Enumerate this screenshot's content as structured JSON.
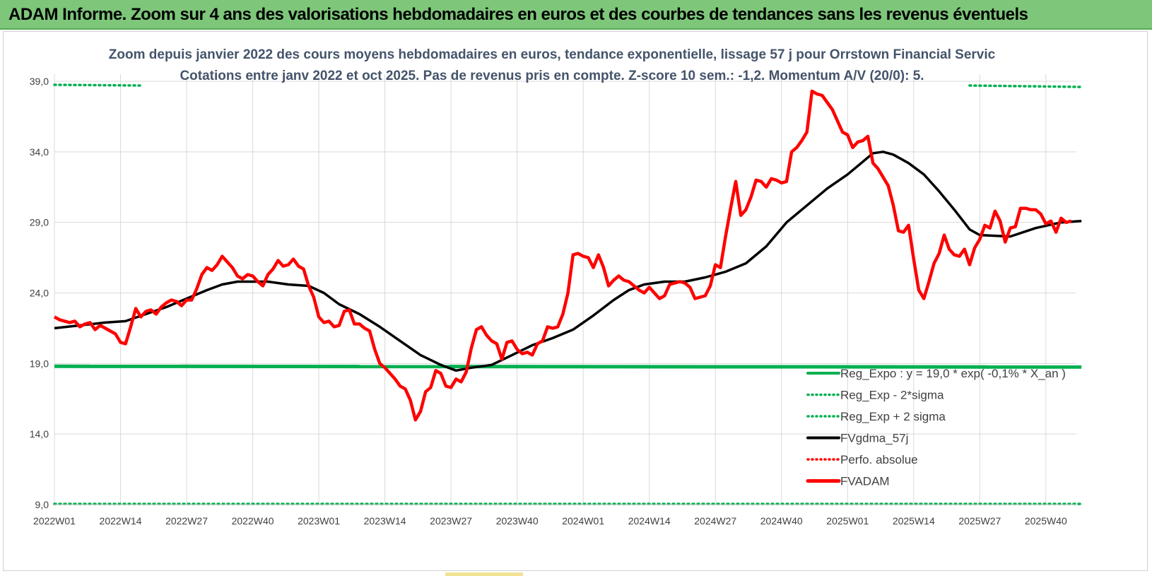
{
  "header": {
    "title": "ADAM Informe. Zoom sur 4 ans des valorisations hebdomadaires en euros et des courbes de tendances sans les revenus éventuels"
  },
  "colors": {
    "banner": "#7dc67a",
    "price": "#ff0000",
    "trend": "#000000",
    "regression": "#00b050",
    "grid": "#d9d9d9"
  },
  "chart_data": {
    "type": "line",
    "title_line1": "Zoom depuis janvier 2022 des cours moyens hebdomadaires en euros, tendance exponentielle, lissage 57 j pour Orrstown Financial Servic",
    "title_line2": "Cotations entre janv 2022 et oct 2025. Pas de revenus pris en compte. Z-score 10 sem.: -1,2. Momentum A/V (20/0): 5.",
    "ylim": [
      9,
      39
    ],
    "yticks": [
      9,
      14,
      19,
      24,
      29,
      34,
      39
    ],
    "ytick_labels": [
      "9,0",
      "14,0",
      "19,0",
      "24,0",
      "29,0",
      "34,0",
      "39,0"
    ],
    "xtick_labels": [
      "2022W01",
      "2022W14",
      "2022W27",
      "2022W40",
      "2023W01",
      "2023W14",
      "2023W27",
      "2023W40",
      "2024W01",
      "2024W14",
      "2024W27",
      "2024W40",
      "2025W01",
      "2025W14",
      "2025W27",
      "2025W40"
    ],
    "weeks_per_tick": 13,
    "n_weeks": 202,
    "legend": {
      "placement": "bottom-right",
      "entries": [
        {
          "label": "Reg_Expo : y = 19,0 * exp( -0,1% *  X_an )",
          "style": "solid",
          "color": "#00b050"
        },
        {
          "label": "Reg_Exp - 2*sigma",
          "style": "dotted",
          "color": "#00b050"
        },
        {
          "label": "Reg_Exp + 2 sigma",
          "style": "dotted",
          "color": "#00b050"
        },
        {
          "label": "FVgdma_57j",
          "style": "solid",
          "color": "#000000"
        },
        {
          "label": "Perfo. absolue",
          "style": "dotted",
          "color": "#ff0000"
        },
        {
          "label": "FVADAM",
          "style": "solid-thick",
          "color": "#ff0000"
        }
      ]
    },
    "series": [
      {
        "name": "Reg_Expo",
        "style": "solid",
        "points": [
          [
            0,
            18.8
          ],
          [
            202,
            18.75
          ]
        ]
      },
      {
        "name": "Reg_Exp - 2*sigma",
        "style": "dotted",
        "points": [
          [
            0,
            9.05
          ],
          [
            202,
            9.05
          ]
        ]
      },
      {
        "name": "Reg_Exp + 2 sigma",
        "style": "dotted",
        "segments": [
          [
            [
              0,
              38.75
            ],
            [
              17,
              38.7
            ]
          ],
          [
            [
              180,
              38.7
            ],
            [
              202,
              38.6
            ]
          ]
        ]
      },
      {
        "name": "FVgdma_57j",
        "points": [
          [
            0,
            21.5
          ],
          [
            5,
            21.7
          ],
          [
            10,
            21.9
          ],
          [
            14,
            22.0
          ],
          [
            18,
            22.5
          ],
          [
            22,
            23.0
          ],
          [
            26,
            23.6
          ],
          [
            30,
            24.2
          ],
          [
            33,
            24.6
          ],
          [
            36,
            24.8
          ],
          [
            42,
            24.8
          ],
          [
            46,
            24.6
          ],
          [
            50,
            24.5
          ],
          [
            53,
            24.0
          ],
          [
            56,
            23.2
          ],
          [
            60,
            22.5
          ],
          [
            64,
            21.6
          ],
          [
            68,
            20.6
          ],
          [
            72,
            19.6
          ],
          [
            76,
            18.9
          ],
          [
            79,
            18.5
          ],
          [
            82,
            18.7
          ],
          [
            86,
            18.9
          ],
          [
            90,
            19.6
          ],
          [
            94,
            20.3
          ],
          [
            98,
            20.8
          ],
          [
            102,
            21.4
          ],
          [
            106,
            22.4
          ],
          [
            110,
            23.5
          ],
          [
            113,
            24.2
          ],
          [
            116,
            24.6
          ],
          [
            120,
            24.8
          ],
          [
            124,
            24.8
          ],
          [
            128,
            25.1
          ],
          [
            132,
            25.5
          ],
          [
            136,
            26.1
          ],
          [
            140,
            27.3
          ],
          [
            144,
            29.0
          ],
          [
            148,
            30.2
          ],
          [
            152,
            31.4
          ],
          [
            156,
            32.4
          ],
          [
            159,
            33.3
          ],
          [
            161,
            33.9
          ],
          [
            163,
            34.0
          ],
          [
            165,
            33.8
          ],
          [
            168,
            33.2
          ],
          [
            171,
            32.4
          ],
          [
            174,
            31.2
          ],
          [
            177,
            29.9
          ],
          [
            180,
            28.5
          ],
          [
            182,
            28.1
          ],
          [
            188,
            28.0
          ],
          [
            193,
            28.6
          ],
          [
            198,
            29.0
          ],
          [
            202,
            29.1
          ]
        ]
      },
      {
        "name": "FVADAM",
        "points": [
          [
            0,
            22.3
          ],
          [
            1,
            22.1
          ],
          [
            2,
            22.0
          ],
          [
            3,
            21.9
          ],
          [
            4,
            22.0
          ],
          [
            5,
            21.6
          ],
          [
            6,
            21.8
          ],
          [
            7,
            21.9
          ],
          [
            8,
            21.4
          ],
          [
            9,
            21.7
          ],
          [
            10,
            21.5
          ],
          [
            11,
            21.3
          ],
          [
            12,
            21.1
          ],
          [
            13,
            20.5
          ],
          [
            14,
            20.4
          ],
          [
            15,
            21.6
          ],
          [
            16,
            22.9
          ],
          [
            17,
            22.3
          ],
          [
            18,
            22.7
          ],
          [
            19,
            22.8
          ],
          [
            20,
            22.5
          ],
          [
            21,
            23.0
          ],
          [
            22,
            23.3
          ],
          [
            23,
            23.5
          ],
          [
            24,
            23.4
          ],
          [
            25,
            23.1
          ],
          [
            26,
            23.5
          ],
          [
            27,
            23.5
          ],
          [
            28,
            24.3
          ],
          [
            29,
            25.3
          ],
          [
            30,
            25.8
          ],
          [
            31,
            25.6
          ],
          [
            32,
            26.0
          ],
          [
            33,
            26.6
          ],
          [
            34,
            26.2
          ],
          [
            35,
            25.8
          ],
          [
            36,
            25.2
          ],
          [
            37,
            25.0
          ],
          [
            38,
            25.3
          ],
          [
            39,
            25.2
          ],
          [
            40,
            24.8
          ],
          [
            41,
            24.5
          ],
          [
            42,
            25.3
          ],
          [
            43,
            25.7
          ],
          [
            44,
            26.3
          ],
          [
            45,
            25.9
          ],
          [
            46,
            26.0
          ],
          [
            47,
            26.4
          ],
          [
            48,
            25.9
          ],
          [
            49,
            25.7
          ],
          [
            50,
            24.5
          ],
          [
            51,
            23.7
          ],
          [
            52,
            22.3
          ],
          [
            53,
            21.9
          ],
          [
            54,
            22.0
          ],
          [
            55,
            21.6
          ],
          [
            56,
            21.7
          ],
          [
            57,
            22.7
          ],
          [
            58,
            22.8
          ],
          [
            59,
            21.8
          ],
          [
            60,
            21.8
          ],
          [
            61,
            21.5
          ],
          [
            62,
            21.3
          ],
          [
            63,
            20.0
          ],
          [
            64,
            19.0
          ],
          [
            65,
            18.7
          ],
          [
            66,
            18.3
          ],
          [
            67,
            17.9
          ],
          [
            68,
            17.4
          ],
          [
            69,
            17.2
          ],
          [
            70,
            16.4
          ],
          [
            71,
            15.0
          ],
          [
            72,
            15.6
          ],
          [
            73,
            17.0
          ],
          [
            74,
            17.3
          ],
          [
            75,
            18.5
          ],
          [
            76,
            18.3
          ],
          [
            77,
            17.4
          ],
          [
            78,
            17.3
          ],
          [
            79,
            17.9
          ],
          [
            80,
            17.7
          ],
          [
            81,
            18.4
          ],
          [
            82,
            20.1
          ],
          [
            83,
            21.4
          ],
          [
            84,
            21.6
          ],
          [
            85,
            21.0
          ],
          [
            86,
            20.6
          ],
          [
            87,
            20.4
          ],
          [
            88,
            19.3
          ],
          [
            89,
            20.5
          ],
          [
            90,
            20.6
          ],
          [
            91,
            20.0
          ],
          [
            92,
            19.7
          ],
          [
            93,
            19.8
          ],
          [
            94,
            19.6
          ],
          [
            95,
            20.4
          ],
          [
            96,
            20.6
          ],
          [
            97,
            21.6
          ],
          [
            98,
            21.5
          ],
          [
            99,
            21.6
          ],
          [
            100,
            22.5
          ],
          [
            101,
            24.0
          ],
          [
            102,
            26.7
          ],
          [
            103,
            26.8
          ],
          [
            104,
            26.6
          ],
          [
            105,
            26.5
          ],
          [
            106,
            25.8
          ],
          [
            107,
            26.7
          ],
          [
            108,
            25.8
          ],
          [
            109,
            24.5
          ],
          [
            110,
            24.9
          ],
          [
            111,
            25.2
          ],
          [
            112,
            24.9
          ],
          [
            113,
            24.8
          ],
          [
            114,
            24.5
          ],
          [
            115,
            24.2
          ],
          [
            116,
            24.0
          ],
          [
            117,
            24.4
          ],
          [
            118,
            24.0
          ],
          [
            119,
            23.6
          ],
          [
            120,
            23.8
          ],
          [
            121,
            24.6
          ],
          [
            122,
            24.7
          ],
          [
            123,
            24.8
          ],
          [
            124,
            24.7
          ],
          [
            125,
            24.4
          ],
          [
            126,
            23.6
          ],
          [
            127,
            23.7
          ],
          [
            128,
            23.8
          ],
          [
            129,
            24.5
          ],
          [
            130,
            26.0
          ],
          [
            131,
            25.8
          ],
          [
            132,
            28.0
          ],
          [
            133,
            30.0
          ],
          [
            134,
            31.9
          ],
          [
            135,
            29.5
          ],
          [
            136,
            29.9
          ],
          [
            137,
            30.8
          ],
          [
            138,
            32.0
          ],
          [
            139,
            31.9
          ],
          [
            140,
            31.5
          ],
          [
            141,
            32.1
          ],
          [
            142,
            32.0
          ],
          [
            143,
            31.8
          ],
          [
            144,
            31.9
          ],
          [
            145,
            34.0
          ],
          [
            146,
            34.3
          ],
          [
            147,
            34.8
          ],
          [
            148,
            35.4
          ],
          [
            149,
            38.3
          ],
          [
            150,
            38.1
          ],
          [
            151,
            38.0
          ],
          [
            152,
            37.5
          ],
          [
            153,
            37.0
          ],
          [
            154,
            36.2
          ],
          [
            155,
            35.4
          ],
          [
            156,
            35.2
          ],
          [
            157,
            34.3
          ],
          [
            158,
            34.7
          ],
          [
            159,
            34.8
          ],
          [
            160,
            35.1
          ],
          [
            161,
            33.2
          ],
          [
            162,
            32.8
          ],
          [
            163,
            32.2
          ],
          [
            164,
            31.6
          ],
          [
            165,
            30.2
          ],
          [
            166,
            28.4
          ],
          [
            167,
            28.3
          ],
          [
            168,
            28.8
          ],
          [
            169,
            26.4
          ],
          [
            170,
            24.2
          ],
          [
            171,
            23.6
          ],
          [
            172,
            24.8
          ],
          [
            173,
            26.1
          ],
          [
            174,
            26.8
          ],
          [
            175,
            28.1
          ],
          [
            176,
            27.1
          ],
          [
            177,
            26.7
          ],
          [
            178,
            26.6
          ],
          [
            179,
            27.1
          ],
          [
            180,
            26.0
          ],
          [
            181,
            27.2
          ],
          [
            182,
            27.8
          ],
          [
            183,
            28.8
          ],
          [
            184,
            28.6
          ],
          [
            185,
            29.8
          ],
          [
            186,
            29.1
          ],
          [
            187,
            27.6
          ],
          [
            188,
            28.6
          ],
          [
            189,
            28.7
          ],
          [
            190,
            30.0
          ],
          [
            191,
            30.0
          ],
          [
            192,
            29.9
          ],
          [
            193,
            29.9
          ],
          [
            194,
            29.6
          ],
          [
            195,
            28.9
          ],
          [
            196,
            29.1
          ],
          [
            197,
            28.3
          ],
          [
            198,
            29.3
          ],
          [
            199,
            29.0
          ],
          [
            200,
            29.1
          ]
        ]
      }
    ]
  }
}
